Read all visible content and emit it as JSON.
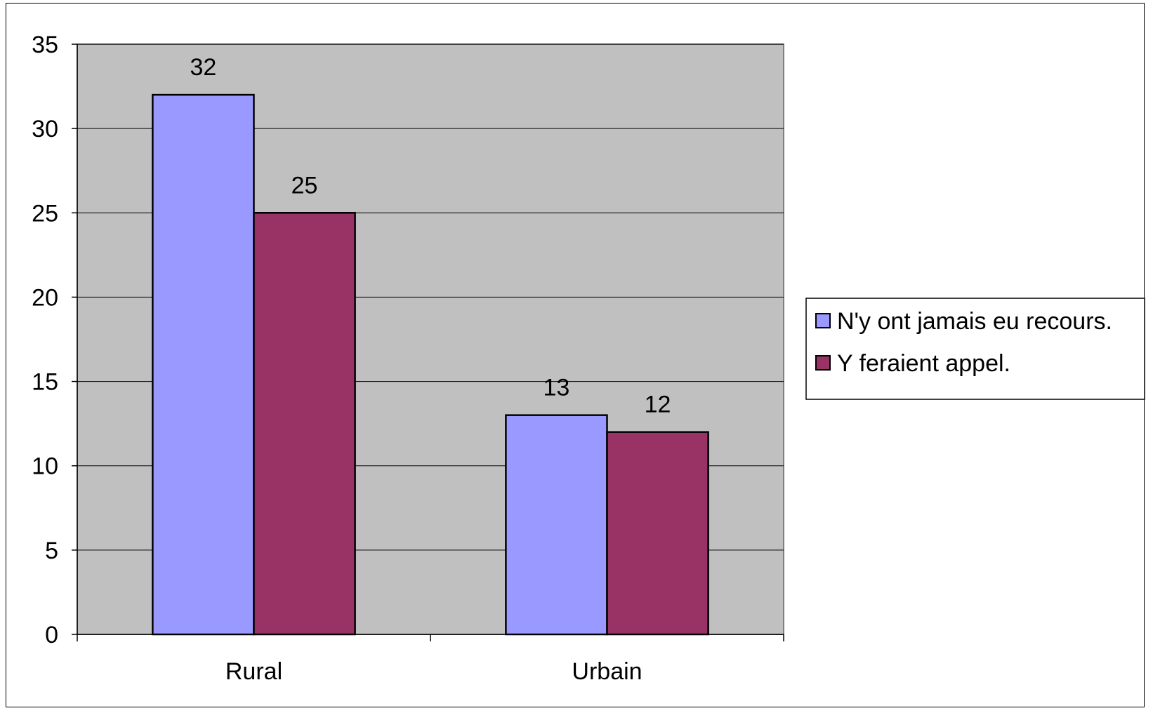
{
  "chart_data": {
    "type": "bar",
    "categories": [
      "Rural",
      "Urbain"
    ],
    "series": [
      {
        "name": "N'y ont jamais eu recours.",
        "values": [
          32,
          13
        ],
        "color": "#9999FF"
      },
      {
        "name": "Y feraient appel.",
        "values": [
          25,
          12
        ],
        "color": "#993366"
      }
    ],
    "data_labels": true,
    "title": "",
    "xlabel": "",
    "ylabel": "",
    "ylim": [
      0,
      35
    ],
    "yticks": [
      0,
      5,
      10,
      15,
      20,
      25,
      30,
      35
    ],
    "grid": true,
    "legend_position": "right",
    "plot_background": "#C0C0C0"
  }
}
